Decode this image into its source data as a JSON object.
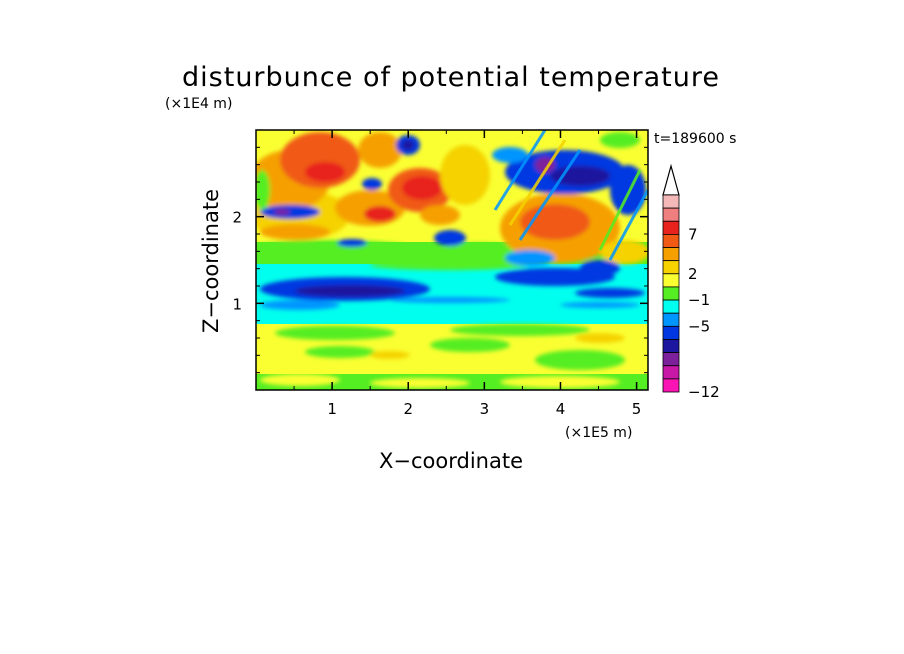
{
  "chart_data": {
    "type": "heatmap",
    "title": "disturbunce of potential temperature",
    "time_label": "t=189600 s",
    "xlabel": "X−coordinate",
    "ylabel": "Z−coordinate",
    "x_unit": "(×1E5 m)",
    "y_unit": "(×1E4 m)",
    "xlim": [
      0,
      5.15
    ],
    "ylim": [
      0,
      3.0
    ],
    "x_ticks": [
      "1",
      "2",
      "3",
      "4",
      "5"
    ],
    "x_tick_values": [
      1,
      2,
      3,
      4,
      5
    ],
    "y_ticks": [
      "1",
      "2"
    ],
    "y_tick_values": [
      1,
      2
    ],
    "grid": false,
    "colorbar": {
      "position": "right",
      "extend": "max",
      "labels": [
        "7",
        "2",
        "−1",
        "−5",
        "−12"
      ],
      "label_values": [
        7,
        2,
        -1,
        -5,
        -12
      ],
      "colors": [
        "#f5b8b8",
        "#ef7f7f",
        "#e8231e",
        "#f05a14",
        "#f5a000",
        "#f5d200",
        "#faff32",
        "#55ee22",
        "#00ffee",
        "#0095ff",
        "#0037e1",
        "#1d169e",
        "#7d209b",
        "#c818a8",
        "#fa14b4"
      ]
    },
    "bands": [
      {
        "z_range": [
          0.0,
          0.15
        ],
        "description": "green with yellow patches"
      },
      {
        "z_range": [
          0.15,
          0.8
        ],
        "description": "yellow with green/orange patches"
      },
      {
        "z_range": [
          0.8,
          1.4
        ],
        "description": "cyan with blue band near z=1.1"
      },
      {
        "z_range": [
          1.4,
          1.7
        ],
        "description": "green"
      },
      {
        "z_range": [
          1.7,
          3.0
        ],
        "description": "orange/red/yellow cells with blue and purple cells"
      }
    ]
  }
}
